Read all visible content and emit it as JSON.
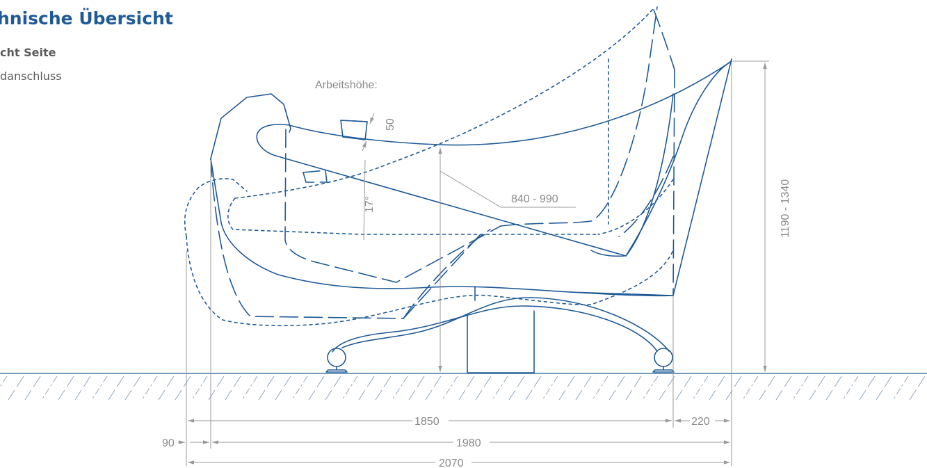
{
  "header": {
    "title": "hnische Übersicht",
    "subtitle": "cht Seite",
    "caption": "danschluss"
  },
  "labels": {
    "arbeitshoehe": "Arbeitshöhe:",
    "headrest_height": "50",
    "angle": "17°",
    "work_height_range": "840 - 990",
    "total_height_range": "1190 - 1340"
  },
  "dimensions": {
    "length_inner": "1850",
    "offset_right": "220",
    "offset_left": "90",
    "length_mid": "1980",
    "length_total": "2070"
  },
  "colors": {
    "line_blue": "#1f5a97",
    "dimension_gray": "#8a8a8a",
    "title_blue": "#1f5a97"
  }
}
